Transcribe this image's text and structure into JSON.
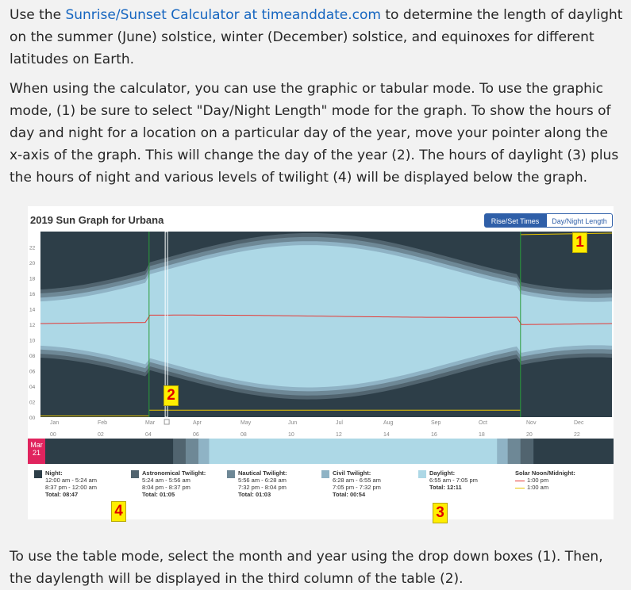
{
  "intro": {
    "p1_before": "Use the ",
    "p1_link": "Sunrise/Sunset Calculator at timeanddate.com",
    "p1_after": " to determine the length of daylight on the summer (June) solstice, winter (December) solstice, and equinoxes for different latitudes on Earth.",
    "p2": "When using the calculator, you can use the graphic or tabular mode. To use the graphic mode, (1) be sure to select \"Day/Night Length\" mode for the graph. To show the hours of day and night for a location on a particular day of the year, move your pointer along the x-axis of the graph. This will change the day of the year (2). The hours of daylight (3) plus the hours of night and various levels of twilight (4) will be displayed below the graph.",
    "p3": "To use the table mode, select the month and year using the drop down boxes (1). Then, the daylength will be displayed in the third column of the table (2)."
  },
  "graph": {
    "title": "2019 Sun Graph for Urbana",
    "toggle_rise": "Rise/Set Times",
    "toggle_day": "Day/Night Length",
    "date_badge_month": "Mar",
    "date_badge_day": "21",
    "callouts": [
      "1",
      "2",
      "3",
      "4"
    ]
  },
  "chart_data": {
    "type": "area",
    "title": "2019 Sun Graph for Urbana",
    "xlabel": "",
    "ylabel": "",
    "y_ticks": [
      "22",
      "20",
      "18",
      "16",
      "14",
      "12",
      "10",
      "08",
      "06",
      "04",
      "02",
      "00"
    ],
    "ylim": [
      0,
      24
    ],
    "months": [
      "Jan",
      "Feb",
      "Mar",
      "Apr",
      "May",
      "Jun",
      "Jul",
      "Aug",
      "Sep",
      "Oct",
      "Nov",
      "Dec"
    ],
    "hour_ticks": [
      "00",
      "02",
      "04",
      "06",
      "08",
      "10",
      "12",
      "14",
      "16",
      "18",
      "20",
      "22"
    ],
    "dst_start_fraction": 0.19,
    "dst_end_fraction": 0.84,
    "selected_day_fraction": 0.221,
    "series": [
      {
        "name": "Daylight",
        "color": "#add8e6",
        "start_hours": [
          7.2,
          6.9,
          7.0,
          6.2,
          5.6,
          5.3,
          5.5,
          6.0,
          6.6,
          7.2,
          6.8,
          7.1
        ],
        "end_hours": [
          16.8,
          17.4,
          18.9,
          19.5,
          20.1,
          20.5,
          20.4,
          19.9,
          19.2,
          18.4,
          16.8,
          16.5
        ]
      },
      {
        "name": "Solar Noon/Midnight",
        "color": "#e53935",
        "values": [
          12.1,
          12.2,
          13.0,
          13.0,
          12.9,
          13.0,
          13.1,
          13.1,
          12.9,
          12.8,
          11.9,
          12.0
        ]
      }
    ],
    "legend_entries": [
      "Night",
      "Astronomical Twilight",
      "Nautical Twilight",
      "Civil Twilight",
      "Daylight",
      "Solar Noon/Midnight"
    ]
  },
  "legend": {
    "night": {
      "title": "Night:",
      "line1": "12:00 am - 5:24 am",
      "line2": "8:37 pm - 12:00 am",
      "total": "Total: 08:47",
      "color": "#2d3e48"
    },
    "astro": {
      "title": "Astronomical Twilight:",
      "line1": "5:24 am - 5:56 am",
      "line2": "8:04 pm - 8:37 pm",
      "total": "Total: 01:05",
      "color": "#51646f"
    },
    "nautical": {
      "title": "Nautical Twilight:",
      "line1": "5:56 am - 6:28 am",
      "line2": "7:32 pm - 8:04 pm",
      "total": "Total: 01:03",
      "color": "#6e8896"
    },
    "civil": {
      "title": "Civil Twilight:",
      "line1": "6:28 am - 6:55 am",
      "line2": "7:05 pm - 7:32 pm",
      "total": "Total: 00:54",
      "color": "#8fb3c5"
    },
    "daylight": {
      "title": "Daylight:",
      "line1": "6:55 am - 7:05 pm",
      "total": "Total: 12:11",
      "color": "#add8e6"
    },
    "noon": {
      "title": "Solar Noon/Midnight:",
      "line1": "1:00 pm",
      "line2": "1:00 am",
      "color_noon": "#e53935",
      "color_mid": "#e8c400"
    }
  }
}
